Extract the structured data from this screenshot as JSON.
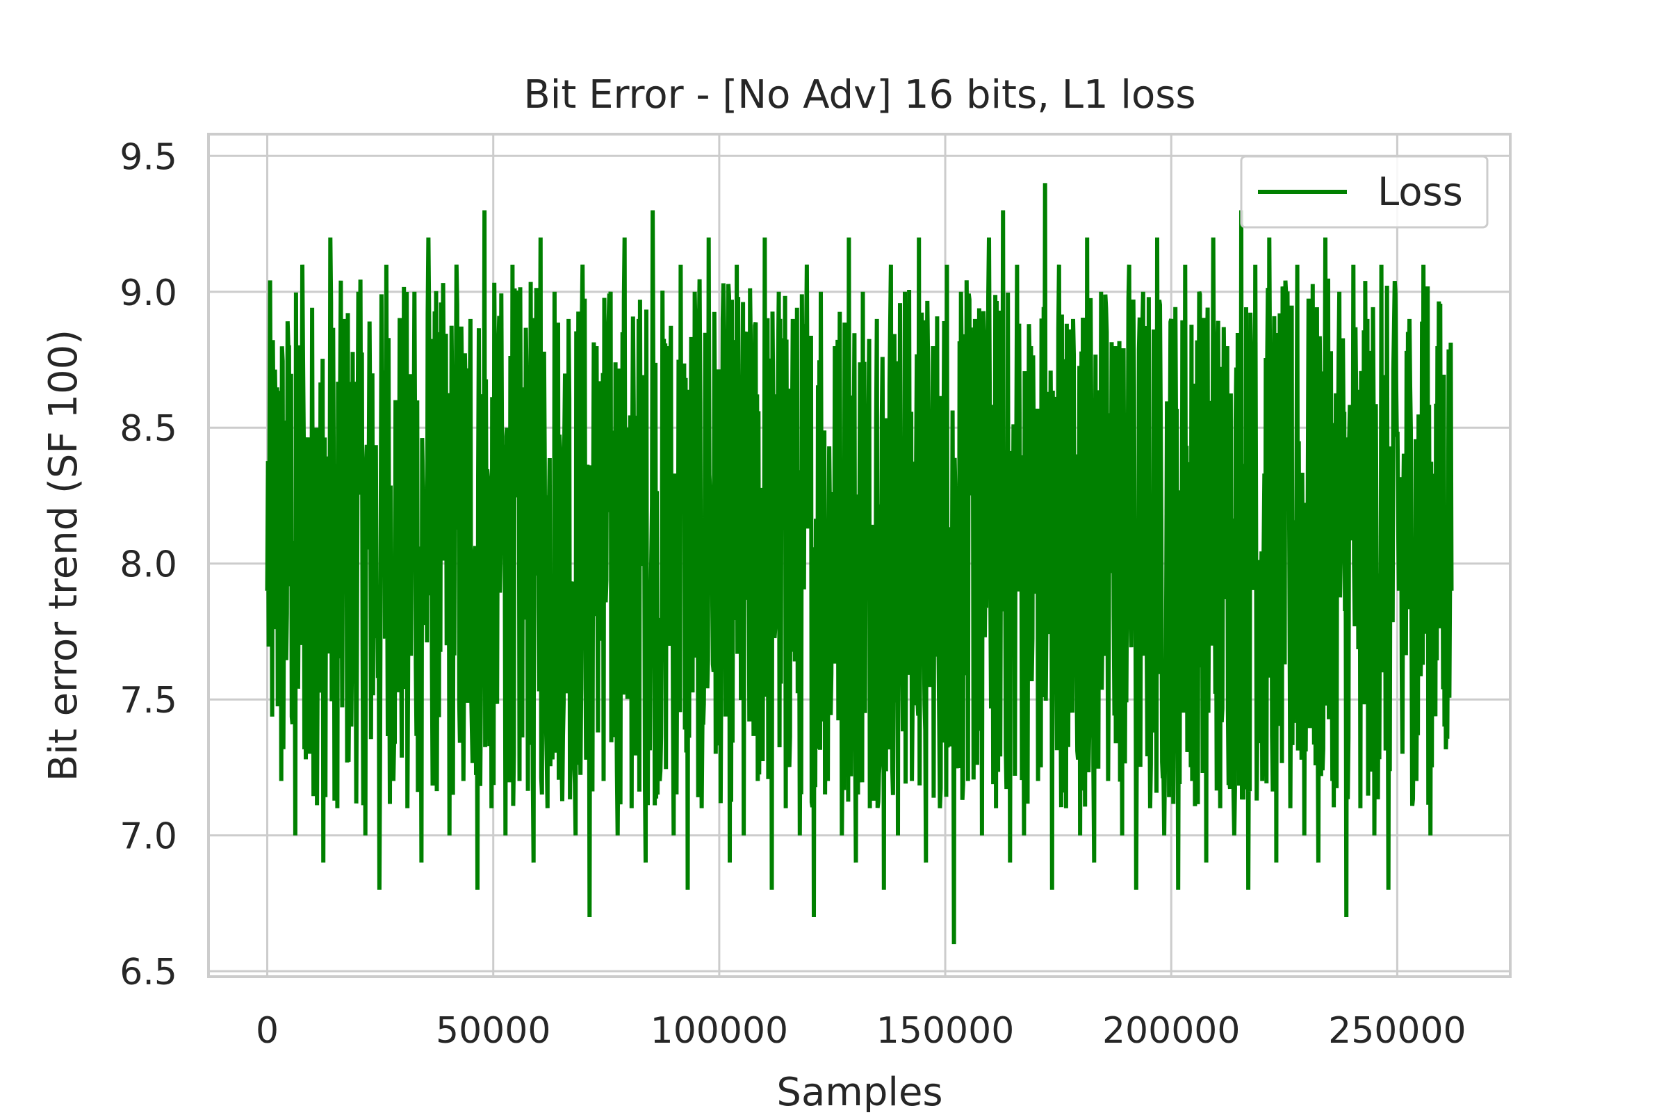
{
  "chart_data": {
    "type": "line",
    "title": "Bit Error - [No Adv] 16 bits, L1 loss",
    "xlabel": "Samples",
    "ylabel": "Bit error trend (SF 100)",
    "xlim": [
      -13000,
      275000
    ],
    "ylim": [
      6.48,
      9.58
    ],
    "x_ticks": [
      0,
      50000,
      100000,
      150000,
      200000,
      250000
    ],
    "y_ticks": [
      6.5,
      7.0,
      7.5,
      8.0,
      8.5,
      9.0,
      9.5
    ],
    "grid": true,
    "legend_position": "top-right",
    "series": [
      {
        "name": "Loss",
        "color": "#008000",
        "x_start": 0,
        "x_end": 262000,
        "values": [
          7.9,
          8.6,
          7.2,
          8.8,
          7.0,
          9.1,
          7.3,
          8.5,
          6.9,
          9.2,
          7.1,
          8.9,
          7.4,
          9.0,
          7.0,
          8.7,
          6.8,
          9.1,
          7.2,
          8.8,
          7.1,
          9.0,
          6.9,
          9.2,
          7.3,
          8.6,
          7.0,
          9.1,
          7.2,
          8.9,
          6.8,
          9.3,
          7.1,
          8.8,
          7.0,
          9.1,
          7.2,
          8.7,
          6.9,
          9.2,
          7.1,
          9.0,
          7.3,
          8.9,
          7.0,
          9.1,
          6.7,
          8.8,
          7.2,
          9.0,
          7.0,
          9.2,
          7.1,
          8.9,
          6.9,
          9.3,
          7.2,
          8.8,
          7.0,
          9.1,
          6.8,
          9.0,
          7.1,
          9.2,
          7.3,
          8.9,
          6.9,
          9.1,
          7.0,
          8.8,
          7.2,
          9.2,
          6.8,
          9.0,
          7.1,
          8.9,
          7.0,
          9.1,
          6.7,
          9.0,
          7.2,
          8.8,
          7.0,
          9.2,
          6.9,
          9.0,
          7.1,
          8.9,
          6.8,
          9.1,
          7.0,
          9.0,
          7.2,
          9.2,
          6.9,
          8.8,
          7.1,
          9.1,
          6.6,
          9.0,
          7.2,
          8.9,
          7.0,
          9.2,
          7.1,
          9.3,
          6.9,
          9.1,
          7.0,
          8.8,
          7.2,
          9.4,
          6.8,
          9.1,
          7.1,
          8.9,
          7.0,
          9.2,
          6.9,
          9.0,
          7.2,
          8.8,
          7.0,
          9.1,
          6.8,
          9.0,
          7.1,
          9.2,
          7.0,
          8.9,
          6.8,
          9.1,
          7.2,
          9.0,
          6.9,
          9.2,
          7.1,
          8.8,
          7.0,
          9.3,
          6.8,
          9.1,
          7.2,
          9.2,
          6.9,
          9.0,
          7.1,
          9.1,
          7.0,
          8.9,
          6.9,
          9.2,
          7.2,
          9.0,
          6.7,
          9.1,
          7.1,
          8.9,
          7.0,
          9.1,
          6.8,
          9.0,
          7.3,
          8.9,
          7.2,
          9.1,
          7.0,
          8.8,
          7.4,
          7.9
        ]
      }
    ]
  }
}
